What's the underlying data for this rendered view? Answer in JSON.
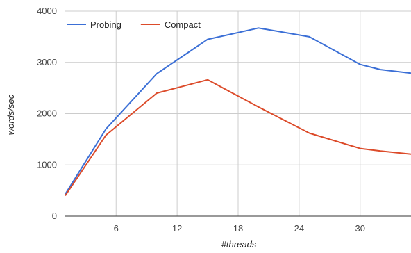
{
  "chart_data": {
    "type": "line",
    "title": "",
    "xlabel": "#threads",
    "ylabel": "words/sec",
    "xlim": [
      1,
      35
    ],
    "ylim": [
      0,
      4000
    ],
    "xticks": [
      6,
      12,
      18,
      24,
      30
    ],
    "yticks": [
      0,
      1000,
      2000,
      3000,
      4000
    ],
    "grid": true,
    "legend_position": "top-left",
    "series": [
      {
        "name": "Probing",
        "color": "#3b6fd6",
        "x": [
          1,
          5,
          10,
          15,
          20,
          25,
          30,
          32,
          35
        ],
        "y": [
          430,
          1700,
          2780,
          3450,
          3670,
          3500,
          2960,
          2860,
          2790
        ]
      },
      {
        "name": "Compact",
        "color": "#dc4b2a",
        "x": [
          1,
          5,
          10,
          15,
          20,
          25,
          30,
          32,
          35
        ],
        "y": [
          400,
          1580,
          2400,
          2660,
          2130,
          1620,
          1320,
          1270,
          1210
        ]
      }
    ]
  }
}
